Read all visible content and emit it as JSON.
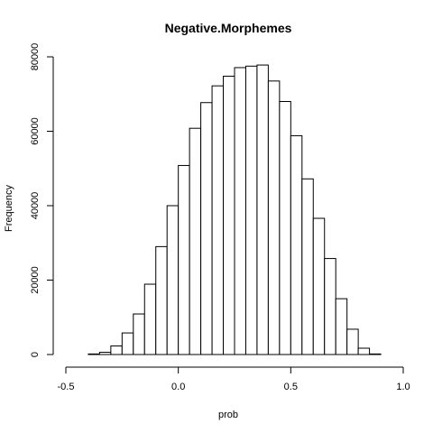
{
  "chart_data": {
    "type": "bar",
    "title": "Negative.Morphemes",
    "xlabel": "prob",
    "ylabel": "Frequency",
    "xlim": [
      -0.5,
      1.0
    ],
    "ylim": [
      0,
      80000
    ],
    "x_ticks": [
      -0.5,
      0.0,
      0.5,
      1.0
    ],
    "x_tick_labels": [
      "-0.5",
      "0.0",
      "0.5",
      "1.0"
    ],
    "y_ticks": [
      0,
      20000,
      40000,
      60000,
      80000
    ],
    "y_tick_labels": [
      "0",
      "20000",
      "40000",
      "60000",
      "80000"
    ],
    "grid": false,
    "bin_width": 0.05,
    "bins": [
      {
        "x0": -0.4,
        "x1": -0.35,
        "value": 150
      },
      {
        "x0": -0.35,
        "x1": -0.3,
        "value": 600
      },
      {
        "x0": -0.3,
        "x1": -0.25,
        "value": 2300
      },
      {
        "x0": -0.25,
        "x1": -0.2,
        "value": 5800
      },
      {
        "x0": -0.2,
        "x1": -0.15,
        "value": 10900
      },
      {
        "x0": -0.15,
        "x1": -0.1,
        "value": 18900
      },
      {
        "x0": -0.1,
        "x1": -0.05,
        "value": 29000
      },
      {
        "x0": -0.05,
        "x1": 0.0,
        "value": 40000
      },
      {
        "x0": 0.0,
        "x1": 0.05,
        "value": 50800
      },
      {
        "x0": 0.05,
        "x1": 0.1,
        "value": 60800
      },
      {
        "x0": 0.1,
        "x1": 0.15,
        "value": 67700
      },
      {
        "x0": 0.15,
        "x1": 0.2,
        "value": 72200
      },
      {
        "x0": 0.2,
        "x1": 0.25,
        "value": 74800
      },
      {
        "x0": 0.25,
        "x1": 0.3,
        "value": 77100
      },
      {
        "x0": 0.3,
        "x1": 0.35,
        "value": 77500
      },
      {
        "x0": 0.35,
        "x1": 0.4,
        "value": 77800
      },
      {
        "x0": 0.4,
        "x1": 0.45,
        "value": 73500
      },
      {
        "x0": 0.45,
        "x1": 0.5,
        "value": 68000
      },
      {
        "x0": 0.5,
        "x1": 0.55,
        "value": 58800
      },
      {
        "x0": 0.55,
        "x1": 0.6,
        "value": 47200
      },
      {
        "x0": 0.6,
        "x1": 0.65,
        "value": 36600
      },
      {
        "x0": 0.65,
        "x1": 0.7,
        "value": 25800
      },
      {
        "x0": 0.7,
        "x1": 0.75,
        "value": 15000
      },
      {
        "x0": 0.75,
        "x1": 0.8,
        "value": 6800
      },
      {
        "x0": 0.8,
        "x1": 0.85,
        "value": 1700
      },
      {
        "x0": 0.85,
        "x1": 0.9,
        "value": 150
      }
    ],
    "bar_fill": "#ffffff",
    "bar_stroke": "#000000"
  }
}
